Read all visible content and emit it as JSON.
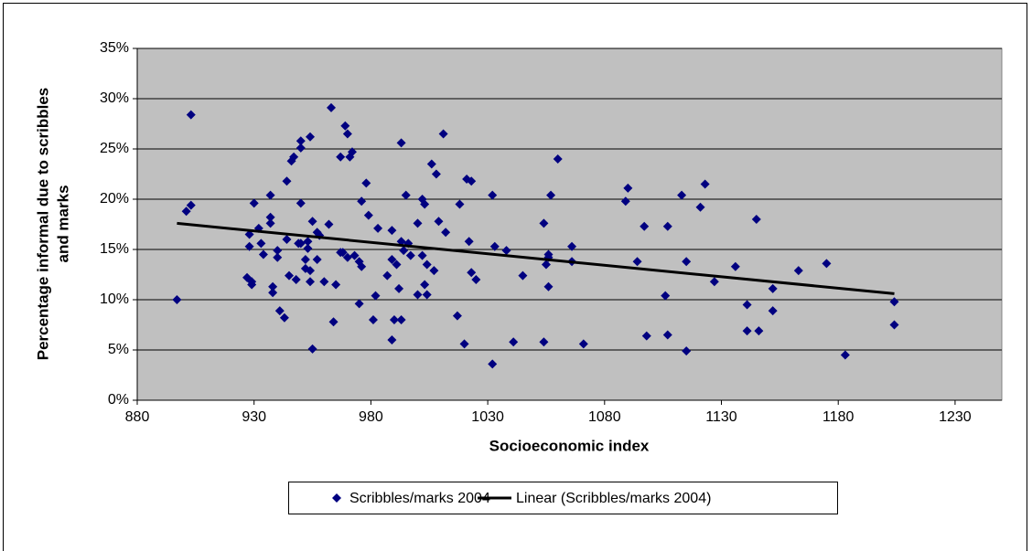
{
  "chart_data": {
    "type": "scatter",
    "x_label": "Socioeconomic index",
    "y_label": [
      "Percentage informal due to scribbles",
      "and marks"
    ],
    "xlim": [
      880,
      1250
    ],
    "xticks": [
      880,
      930,
      980,
      1030,
      1080,
      1130,
      1180,
      1230
    ],
    "ylim": [
      0,
      35
    ],
    "yticks": [
      {
        "value": 0,
        "label": "0%"
      },
      {
        "value": 5,
        "label": "5%"
      },
      {
        "value": 10,
        "label": "10%"
      },
      {
        "value": 15,
        "label": "15%"
      },
      {
        "value": 20,
        "label": "20%"
      },
      {
        "value": 25,
        "label": "25%"
      },
      {
        "value": 30,
        "label": "30%"
      },
      {
        "value": 35,
        "label": "35%"
      }
    ],
    "grid": true,
    "legend": "bottom",
    "series": [
      {
        "name": "Scribbles/marks 2004",
        "type": "scatter",
        "color": "#000080",
        "x": [
          897,
          903,
          901,
          903,
          928,
          928,
          927,
          929,
          929,
          930,
          932,
          933,
          934,
          937,
          937,
          937,
          938,
          938,
          940,
          940,
          941,
          943,
          944,
          944,
          945,
          946,
          947,
          948,
          949,
          950,
          950,
          954,
          950,
          950,
          952,
          952,
          953,
          953,
          954,
          954,
          955,
          955,
          957,
          957,
          958,
          960,
          962,
          963,
          964,
          965,
          967,
          967,
          968,
          969,
          970,
          970,
          971,
          972,
          973,
          975,
          975,
          976,
          976,
          978,
          979,
          981,
          982,
          983,
          987,
          989,
          989,
          989,
          990,
          991,
          992,
          993,
          993,
          993,
          994,
          995,
          996,
          997,
          1000,
          1000,
          1002,
          1002,
          1003,
          1003,
          1004,
          1004,
          1006,
          1007,
          1008,
          1009,
          1011,
          1012,
          1017,
          1018,
          1020,
          1021,
          1022,
          1023,
          1023,
          1025,
          1032,
          1032,
          1033,
          1038,
          1041,
          1045,
          1054,
          1054,
          1055,
          1056,
          1056,
          1056,
          1057,
          1060,
          1066,
          1066,
          1071,
          1089,
          1090,
          1094,
          1097,
          1098,
          1106,
          1107,
          1107,
          1113,
          1115,
          1115,
          1121,
          1123,
          1127,
          1136,
          1141,
          1141,
          1145,
          1146,
          1152,
          1152,
          1163,
          1175,
          1183,
          1204,
          1204
        ],
        "values": [
          10.0,
          28.4,
          18.8,
          19.4,
          16.5,
          15.3,
          12.2,
          11.8,
          11.5,
          19.6,
          17.1,
          15.6,
          14.5,
          20.4,
          18.2,
          17.6,
          11.3,
          10.7,
          14.9,
          14.2,
          8.9,
          8.2,
          21.8,
          16.0,
          12.4,
          23.8,
          24.2,
          12.0,
          15.6,
          25.8,
          25.1,
          26.2,
          19.6,
          15.6,
          14.0,
          13.1,
          15.8,
          15.1,
          11.8,
          12.9,
          5.1,
          17.8,
          16.7,
          14.0,
          16.4,
          11.8,
          17.5,
          29.1,
          7.8,
          11.5,
          24.2,
          14.7,
          14.7,
          27.3,
          14.2,
          26.5,
          24.2,
          24.7,
          14.4,
          9.6,
          13.8,
          19.8,
          13.3,
          21.6,
          18.4,
          8.0,
          10.4,
          17.1,
          12.4,
          16.9,
          6.0,
          14.0,
          8.0,
          13.5,
          11.1,
          8.0,
          25.6,
          15.8,
          14.9,
          20.4,
          15.6,
          14.4,
          10.5,
          17.6,
          14.4,
          20.0,
          19.5,
          11.5,
          10.5,
          13.5,
          23.5,
          12.9,
          22.5,
          17.8,
          26.5,
          16.7,
          8.4,
          19.5,
          5.6,
          22.0,
          15.8,
          12.7,
          21.8,
          12.0,
          20.4,
          3.6,
          15.3,
          14.9,
          5.8,
          12.4,
          17.6,
          5.8,
          13.5,
          14.5,
          14.2,
          11.3,
          20.4,
          24.0,
          15.3,
          13.8,
          5.6,
          19.8,
          21.1,
          13.8,
          17.3,
          6.4,
          10.4,
          17.3,
          6.5,
          20.4,
          4.9,
          13.8,
          19.2,
          21.5,
          11.8,
          13.3,
          9.5,
          6.9,
          18.0,
          6.9,
          11.1,
          8.9,
          12.9,
          13.6,
          4.5,
          9.8,
          7.5
        ]
      },
      {
        "name": "Linear (Scribbles/marks 2004)",
        "type": "line",
        "color": "#000000",
        "x": [
          897,
          1204
        ],
        "values": [
          17.6,
          10.6
        ]
      }
    ]
  }
}
